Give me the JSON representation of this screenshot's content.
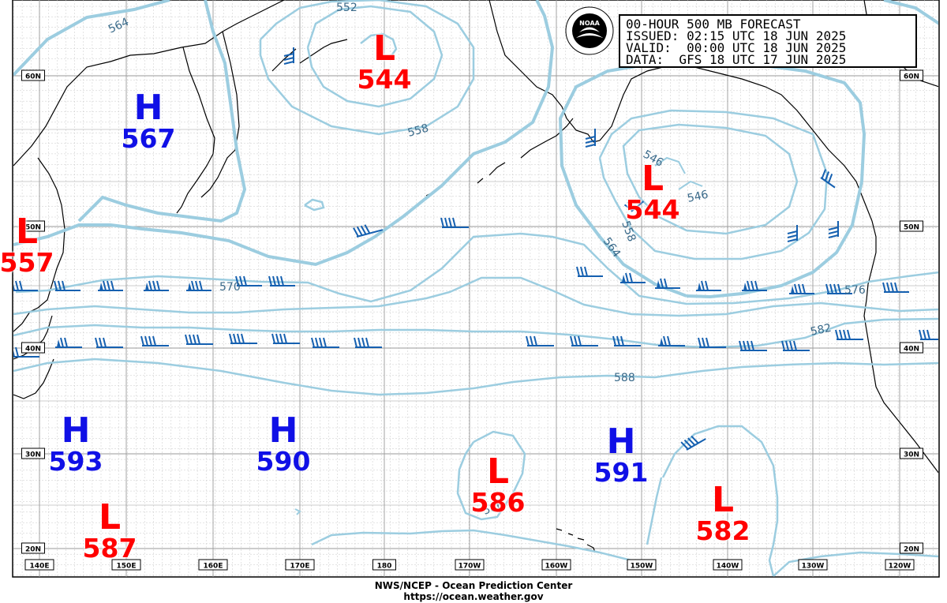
{
  "header": {
    "title": "00-HOUR 500 MB FORECAST",
    "issued": "ISSUED: 02:15 UTC 18 JUN 2025",
    "valid": "VALID:  00:00 UTC 18 JUN 2025",
    "data": "DATA:  GFS 18 UTC 17 JUN 2025"
  },
  "footer": {
    "line1": "NWS/NCEP - Ocean Prediction Center",
    "line2": "https://ocean.weather.gov"
  },
  "longitude_labels": [
    "140E",
    "150E",
    "160E",
    "170E",
    "180",
    "170W",
    "160W",
    "150W",
    "140W",
    "130W",
    "120W"
  ],
  "latitude_labels": [
    "60N",
    "50N",
    "40N",
    "30N",
    "20N"
  ],
  "pressure_centers": [
    {
      "type": "H",
      "value": "567"
    },
    {
      "type": "L",
      "value": "544"
    },
    {
      "type": "L",
      "value": "544"
    },
    {
      "type": "L",
      "value": "557"
    },
    {
      "type": "H",
      "value": "593"
    },
    {
      "type": "H",
      "value": "590"
    },
    {
      "type": "L",
      "value": "586"
    },
    {
      "type": "H",
      "value": "591"
    },
    {
      "type": "L",
      "value": "582"
    },
    {
      "type": "L",
      "value": "587"
    }
  ],
  "contour_labels": [
    "564",
    "552",
    "546",
    "546",
    "558",
    "558",
    "564",
    "570",
    "576",
    "582",
    "588",
    "586"
  ],
  "colors": {
    "high": "#1010e6",
    "low": "#ff0000",
    "contour": "#9ccde0",
    "contour_label": "#3a6a8a",
    "wind_barb": "#1560b0",
    "coast": "#000000",
    "grid": "#9a9a9a"
  },
  "icons": {
    "logo": "noaa-logo-icon",
    "wind": "wind-barb-icon"
  }
}
